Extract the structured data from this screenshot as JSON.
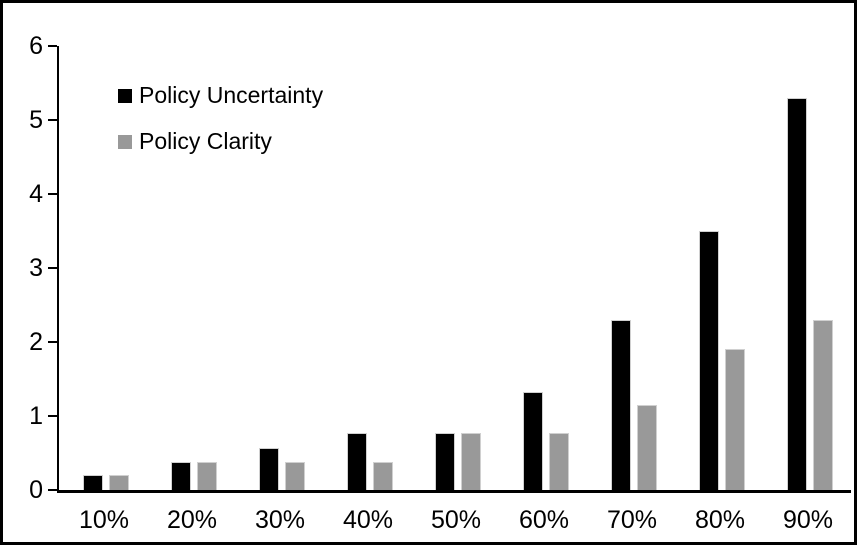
{
  "chart_data": {
    "type": "bar",
    "title": "",
    "xlabel": "",
    "ylabel": "",
    "categories": [
      "10%",
      "20%",
      "30%",
      "40%",
      "50%",
      "60%",
      "70%",
      "80%",
      "90%"
    ],
    "series": [
      {
        "name": "Policy Uncertainty",
        "color": "#000000",
        "values": [
          0.2,
          0.38,
          0.57,
          0.77,
          0.77,
          1.33,
          2.3,
          3.5,
          5.3
        ]
      },
      {
        "name": "Policy Clarity",
        "color": "#999999",
        "values": [
          0.2,
          0.38,
          0.38,
          0.38,
          0.77,
          0.77,
          1.15,
          1.9,
          2.3
        ]
      }
    ],
    "ylim": [
      0,
      6
    ],
    "yticks": [
      0,
      1,
      2,
      3,
      4,
      5,
      6
    ],
    "grid": false,
    "legend_position": "inside-top-left",
    "axis_color": "#000000",
    "background_color": "#ffffff",
    "border_color": "#000000"
  }
}
